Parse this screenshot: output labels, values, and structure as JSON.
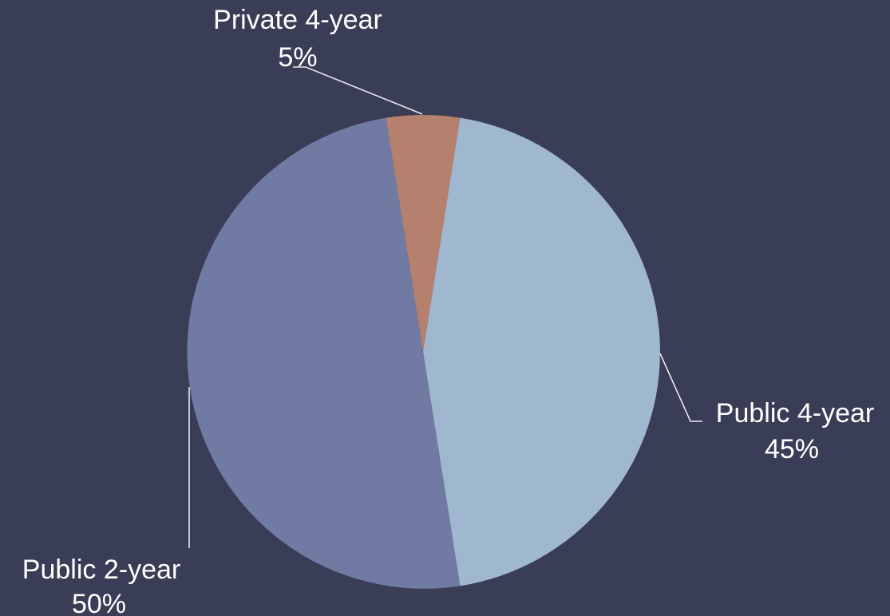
{
  "colors": {
    "background": "#393d55",
    "public_4_year": "#a0b8cf",
    "public_2_year": "#717aa3",
    "private_4_year": "#b6806e",
    "label_text": "#ffffff",
    "leader_line": "#e8e8ee"
  },
  "chart_data": {
    "type": "pie",
    "title": "",
    "slices": [
      {
        "category": "Private 4-year",
        "value": 5,
        "percent_label": "5%",
        "color": "#b6806e"
      },
      {
        "category": "Public 4-year",
        "value": 45,
        "percent_label": "45%",
        "color": "#a0b8cf"
      },
      {
        "category": "Public 2-year",
        "value": 50,
        "percent_label": "50%",
        "color": "#717aa3"
      }
    ],
    "start_angle_deg": -9,
    "direction": "clockwise",
    "legend": "none",
    "label_style": "category and percent with leader lines"
  }
}
